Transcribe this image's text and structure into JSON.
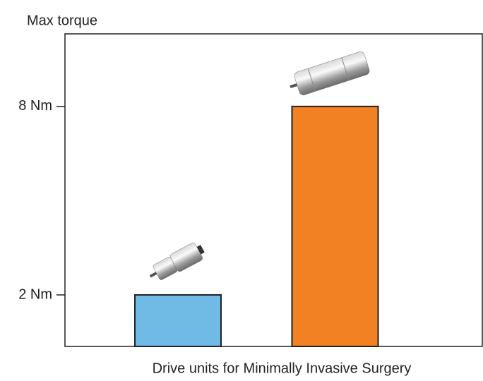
{
  "chart_data": {
    "type": "bar",
    "y_label": "Max torque",
    "x_label": "Drive units for Minimally Invasive Surgery",
    "categories": [
      null,
      null
    ],
    "values": [
      2,
      8
    ],
    "colors": [
      "#6fbbe6",
      "#f28123"
    ],
    "ylim": [
      0.36,
      10.31
    ],
    "yticks": [
      {
        "value": 2,
        "label": "2 Nm"
      },
      {
        "value": 8,
        "label": "8 Nm"
      }
    ],
    "grid": false
  }
}
